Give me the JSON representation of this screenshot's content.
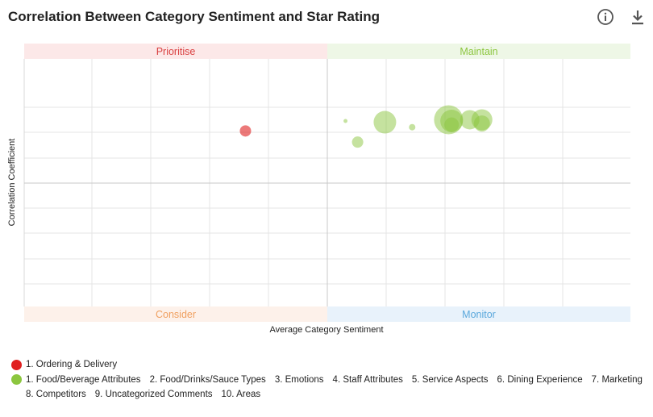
{
  "title": "Correlation Between Category Sentiment and Star Rating",
  "icons": {
    "info": "info-circle-icon",
    "download": "download-icon"
  },
  "colors": {
    "negative": "#e02020",
    "positive": "#8cc63f",
    "prioritise_bg": "#fce8e8",
    "maintain_bg": "#eef7e6",
    "consider_bg": "#fdf1ea",
    "monitor_bg": "#e8f2fb",
    "prioritise_text": "#d94040",
    "maintain_text": "#8cc63f",
    "consider_text": "#f0a060",
    "monitor_text": "#5aa8dc"
  },
  "chart_data": {
    "type": "scatter",
    "title": "Correlation Between Category Sentiment and Star Rating",
    "xlabel": "Average Category Sentiment",
    "ylabel": "Correlation Coefficient",
    "xlim": [
      -1,
      1
    ],
    "ylim": [
      -1,
      1
    ],
    "grid": true,
    "quadrants": {
      "top_left": "Prioritise",
      "top_right": "Maintain",
      "bottom_left": "Consider",
      "bottom_right": "Monitor"
    },
    "series": [
      {
        "name": "negative",
        "color": "#e02020",
        "points": [
          {
            "x": -0.27,
            "y": 0.42,
            "volume": 49
          }
        ]
      },
      {
        "name": "positive",
        "color": "#8cc63f",
        "points": [
          {
            "x": 0.06,
            "y": 0.5,
            "volume": 6
          },
          {
            "x": 0.1,
            "y": 0.33,
            "volume": 49
          },
          {
            "x": 0.19,
            "y": 0.49,
            "volume": 196
          },
          {
            "x": 0.28,
            "y": 0.45,
            "volume": 16
          },
          {
            "x": 0.4,
            "y": 0.51,
            "volume": 324
          },
          {
            "x": 0.41,
            "y": 0.5,
            "volume": 196
          },
          {
            "x": 0.41,
            "y": 0.47,
            "volume": 81
          },
          {
            "x": 0.47,
            "y": 0.51,
            "volume": 144
          },
          {
            "x": 0.51,
            "y": 0.51,
            "volume": 169
          },
          {
            "x": 0.51,
            "y": 0.48,
            "volume": 100
          }
        ]
      }
    ],
    "legend": {
      "placement": "bottom-left",
      "negative": [
        "1. Ordering & Delivery"
      ],
      "positive": [
        "1. Food/Beverage Attributes",
        "2. Food/Drinks/Sauce Types",
        "3. Emotions",
        "4. Staff Attributes",
        "5. Service Aspects",
        "6. Dining Experience",
        "7. Marketing",
        "8. Competitors",
        "9. Uncategorized Comments",
        "10. Areas"
      ]
    }
  }
}
